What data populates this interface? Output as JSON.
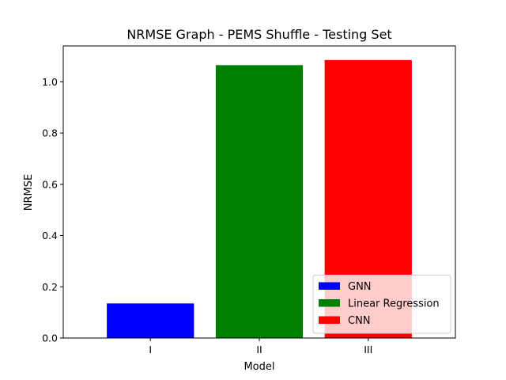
{
  "chart_data": {
    "type": "bar",
    "title": "NRMSE Graph - PEMS Shuffle - Testing Set",
    "xlabel": "Model",
    "ylabel": "NRMSE",
    "categories": [
      "I",
      "II",
      "III"
    ],
    "values": [
      0.135,
      1.065,
      1.085
    ],
    "colors": [
      "#0000ff",
      "#008000",
      "#ff0000"
    ],
    "ylim": [
      0,
      1.14
    ],
    "yticks": [
      0.0,
      0.2,
      0.4,
      0.6,
      0.8,
      1.0
    ],
    "ytick_labels": [
      "0.0",
      "0.2",
      "0.4",
      "0.6",
      "0.8",
      "1.0"
    ],
    "grid": false,
    "legend": {
      "placement": "lower-right",
      "entries": [
        {
          "label": "GNN",
          "color": "#0000ff"
        },
        {
          "label": "Linear Regression",
          "color": "#008000"
        },
        {
          "label": "CNN",
          "color": "#ff0000"
        }
      ]
    }
  }
}
